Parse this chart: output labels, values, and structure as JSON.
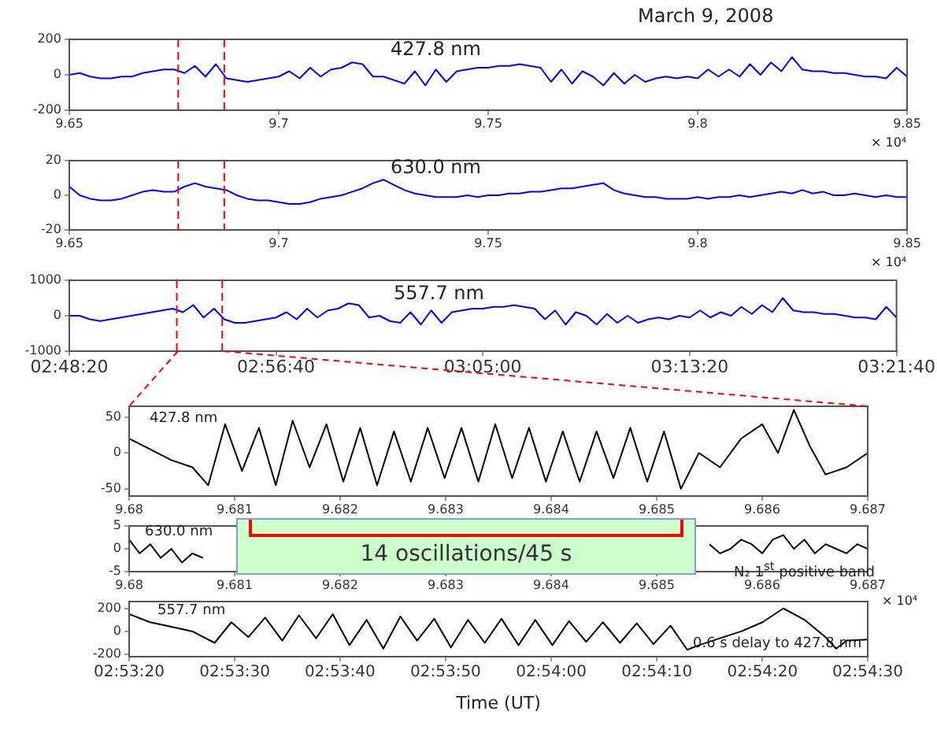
{
  "chart_data": [
    {
      "type": "line",
      "title": "March 9, 2008",
      "annotations": [
        "427.8 nm",
        "× 10⁴"
      ],
      "x": [
        9.65,
        9.6525,
        9.655,
        9.6575,
        9.66,
        9.6625,
        9.665,
        9.6675,
        9.67,
        9.6725,
        9.675,
        9.6775,
        9.68,
        9.6825,
        9.685,
        9.6875,
        9.69,
        9.6925,
        9.695,
        9.6975,
        9.7,
        9.7025,
        9.705,
        9.7075,
        9.71,
        9.7125,
        9.715,
        9.7175,
        9.72,
        9.7225,
        9.725,
        9.7275,
        9.73,
        9.7325,
        9.735,
        9.7375,
        9.74,
        9.7425,
        9.745,
        9.7475,
        9.75,
        9.7525,
        9.755,
        9.7575,
        9.76,
        9.7625,
        9.765,
        9.7675,
        9.77,
        9.7725,
        9.775,
        9.7775,
        9.78,
        9.7825,
        9.785,
        9.7875,
        9.79,
        9.7925,
        9.795,
        9.7975,
        9.8,
        9.8025,
        9.805,
        9.8075,
        9.81,
        9.8125,
        9.815,
        9.8175,
        9.82,
        9.8225,
        9.825,
        9.8275,
        9.83,
        9.8325,
        9.835,
        9.8375,
        9.84,
        9.8425,
        9.845,
        9.8475,
        9.85
      ],
      "series": [
        {
          "color": "#0000ff",
          "values": [
            0,
            10,
            -10,
            -20,
            -20,
            -10,
            -10,
            10,
            20,
            30,
            30,
            10,
            50,
            -10,
            60,
            -20,
            -30,
            -40,
            -30,
            -20,
            -10,
            20,
            -20,
            40,
            -10,
            30,
            40,
            70,
            60,
            -10,
            -10,
            -30,
            -50,
            20,
            -60,
            30,
            -40,
            20,
            30,
            40,
            40,
            50,
            50,
            60,
            50,
            40,
            -40,
            30,
            -50,
            20,
            -10,
            -60,
            10,
            -50,
            0,
            -40,
            -20,
            -10,
            -20,
            -10,
            -20,
            30,
            -10,
            30,
            -10,
            60,
            0,
            70,
            20,
            100,
            30,
            20,
            20,
            10,
            10,
            0,
            -10,
            -10,
            -20,
            40,
            -10
          ]
        }
      ],
      "xlim": [
        9.65,
        9.85
      ],
      "xticks": [
        9.65,
        9.7,
        9.75,
        9.8,
        9.85
      ],
      "ylim": [
        -200,
        200
      ],
      "yticks": [
        -200,
        0,
        200
      ],
      "ref_lines": [
        {
          "axis": "x",
          "value": 9.676,
          "color": "#ff0000",
          "line_style": "dashed"
        },
        {
          "axis": "x",
          "value": 9.687,
          "color": "#ff0000",
          "line_style": "dashed"
        }
      ]
    },
    {
      "type": "line",
      "annotations": [
        "630.0 nm",
        "× 10⁴"
      ],
      "x": [
        9.65,
        9.6525,
        9.655,
        9.6575,
        9.66,
        9.6625,
        9.665,
        9.6675,
        9.67,
        9.6725,
        9.675,
        9.6775,
        9.68,
        9.6825,
        9.685,
        9.6875,
        9.69,
        9.6925,
        9.695,
        9.6975,
        9.7,
        9.7025,
        9.705,
        9.7075,
        9.71,
        9.7125,
        9.715,
        9.7175,
        9.72,
        9.7225,
        9.725,
        9.7275,
        9.73,
        9.7325,
        9.735,
        9.7375,
        9.74,
        9.7425,
        9.745,
        9.7475,
        9.75,
        9.7525,
        9.755,
        9.7575,
        9.76,
        9.7625,
        9.765,
        9.7675,
        9.77,
        9.7725,
        9.775,
        9.7775,
        9.78,
        9.7825,
        9.785,
        9.7875,
        9.79,
        9.7925,
        9.795,
        9.7975,
        9.8,
        9.8025,
        9.805,
        9.8075,
        9.81,
        9.8125,
        9.815,
        9.8175,
        9.82,
        9.8225,
        9.825,
        9.8275,
        9.83,
        9.8325,
        9.835,
        9.8375,
        9.84,
        9.8425,
        9.845,
        9.8475,
        9.85
      ],
      "series": [
        {
          "color": "#0000ff",
          "values": [
            5,
            0,
            -2,
            -3,
            -3,
            -2,
            0,
            2,
            3,
            2,
            2,
            5,
            7,
            5,
            4,
            3,
            0,
            -2,
            -3,
            -3,
            -4,
            -5,
            -5,
            -4,
            -2,
            -1,
            0,
            2,
            4,
            7,
            9,
            6,
            3,
            1,
            0,
            -1,
            -1,
            -1,
            0,
            -1,
            0,
            0,
            1,
            1,
            2,
            2,
            3,
            4,
            4,
            5,
            6,
            7,
            3,
            1,
            0,
            -1,
            -1,
            -2,
            -2,
            -2,
            -1,
            -2,
            -1,
            -1,
            0,
            -1,
            0,
            1,
            2,
            1,
            3,
            1,
            2,
            0,
            0,
            1,
            0,
            -1,
            0,
            -1,
            -1
          ]
        }
      ],
      "xlim": [
        9.65,
        9.85
      ],
      "xticks": [
        9.65,
        9.7,
        9.75,
        9.8,
        9.85
      ],
      "ylim": [
        -20,
        20
      ],
      "yticks": [
        -20,
        0,
        20
      ],
      "ref_lines": [
        {
          "axis": "x",
          "value": 9.676,
          "color": "#ff0000",
          "line_style": "dashed"
        },
        {
          "axis": "x",
          "value": 9.687,
          "color": "#ff0000",
          "line_style": "dashed"
        }
      ]
    },
    {
      "type": "line",
      "annotations": [
        "557.7 nm"
      ],
      "x": [
        2.8056,
        2.8125,
        2.8194,
        2.8264,
        2.8333,
        2.8403,
        2.8472,
        2.8542,
        2.8611,
        2.8681,
        2.875,
        2.8819,
        2.8889,
        2.8958,
        2.9028,
        2.9097,
        2.9167,
        2.9236,
        2.9306,
        2.9375,
        2.9444,
        2.9514,
        2.9583,
        2.9653,
        2.9722,
        2.9792,
        2.9861,
        2.9931,
        3.0,
        3.0069,
        3.0139,
        3.0208,
        3.0278,
        3.0347,
        3.0417,
        3.0486,
        3.0556,
        3.0625,
        3.0694,
        3.0764,
        3.0833,
        3.0903,
        3.0972,
        3.1042,
        3.1111,
        3.1181,
        3.125,
        3.1319,
        3.1389,
        3.1458,
        3.1528,
        3.1597,
        3.1667,
        3.1736,
        3.1806,
        3.1875,
        3.1944,
        3.2014,
        3.2083,
        3.2153,
        3.2222,
        3.2292,
        3.2361,
        3.2431,
        3.25,
        3.2569,
        3.2639,
        3.2708,
        3.2778,
        3.2847,
        3.2917,
        3.2986,
        3.3056,
        3.3125,
        3.3194,
        3.3264,
        3.3333,
        3.3403,
        3.3472,
        3.3542,
        3.3611
      ],
      "series": [
        {
          "color": "#0000ff",
          "values": [
            0,
            0,
            -100,
            -150,
            -100,
            -50,
            0,
            50,
            100,
            150,
            200,
            100,
            300,
            -50,
            200,
            -100,
            -200,
            -200,
            -150,
            -100,
            -50,
            100,
            -100,
            200,
            -50,
            150,
            200,
            350,
            300,
            -50,
            0,
            -150,
            -200,
            100,
            -250,
            150,
            -200,
            100,
            150,
            200,
            200,
            250,
            250,
            300,
            250,
            200,
            -100,
            150,
            -250,
            100,
            0,
            -250,
            50,
            -200,
            0,
            -200,
            -100,
            -50,
            -100,
            0,
            -50,
            150,
            -50,
            100,
            0,
            250,
            50,
            300,
            100,
            500,
            150,
            100,
            100,
            50,
            50,
            0,
            -50,
            -50,
            -100,
            250,
            -50
          ]
        }
      ],
      "xlim": [
        2.8056,
        3.3611
      ],
      "xticks": [
        {
          "value": 2.8056,
          "label": "02:48:20"
        },
        {
          "value": 2.9444,
          "label": "02:56:40"
        },
        {
          "value": 3.0833,
          "label": "03:05:00"
        },
        {
          "value": 3.2222,
          "label": "03:13:20"
        },
        {
          "value": 3.3611,
          "label": "03:21:40"
        }
      ],
      "ylim": [
        -1000,
        1000
      ],
      "yticks": [
        -1000,
        0,
        1000
      ],
      "ref_lines": [
        {
          "axis": "x",
          "value": 2.8778,
          "color": "#ff0000",
          "line_style": "dashed"
        },
        {
          "axis": "x",
          "value": 2.9083,
          "color": "#ff0000",
          "line_style": "dashed"
        }
      ]
    },
    {
      "type": "line",
      "annotations": [
        "427.8 nm",
        "14 oscillations/45 s"
      ],
      "x": [
        9.68,
        9.6802,
        9.6804,
        9.6806,
        9.68075,
        9.68091,
        9.68107,
        9.68123,
        9.68139,
        9.68155,
        9.68171,
        9.68187,
        9.68203,
        9.68219,
        9.68235,
        9.68251,
        9.68267,
        9.68283,
        9.68299,
        9.68315,
        9.68331,
        9.68347,
        9.68363,
        9.68379,
        9.68395,
        9.68411,
        9.68427,
        9.68443,
        9.68459,
        9.68475,
        9.68491,
        9.68507,
        9.68523,
        9.6854,
        9.6856,
        9.6858,
        9.686,
        9.68615,
        9.6863,
        9.68645,
        9.6866,
        9.6868,
        9.687
      ],
      "series": [
        {
          "color": "#000000",
          "values": [
            20,
            5,
            -10,
            -20,
            -45,
            40,
            -25,
            35,
            -45,
            45,
            -20,
            40,
            -40,
            35,
            -45,
            30,
            -40,
            35,
            -35,
            35,
            -40,
            40,
            -35,
            35,
            -40,
            30,
            -40,
            30,
            -35,
            35,
            -40,
            30,
            -50,
            0,
            -20,
            20,
            40,
            0,
            60,
            10,
            -30,
            -20,
            0
          ]
        }
      ],
      "xlim": [
        9.68,
        9.687
      ],
      "xticks": [
        9.68,
        9.681,
        9.682,
        9.683,
        9.684,
        9.685,
        9.686,
        9.687
      ],
      "ylim": [
        -60,
        65
      ],
      "yticks": [
        -50,
        0,
        50
      ]
    },
    {
      "type": "line",
      "annotations": [
        "630.0 nm",
        "N₂ 1$^{st}$ positive band",
        "× 10⁴"
      ],
      "x": [
        9.68,
        9.6801,
        9.6802,
        9.6803,
        9.6804,
        9.6805,
        9.6806,
        9.6807,
        9.683,
        9.6855,
        9.6856,
        9.6857,
        9.6858,
        9.6859,
        9.686,
        9.6861,
        9.6862,
        9.6863,
        9.6864,
        9.6865,
        9.6866,
        9.6867,
        9.6868,
        9.6869,
        9.687
      ],
      "series": [
        {
          "color": "#000000",
          "values": [
            2,
            -1,
            1,
            -2,
            0,
            -3,
            -1,
            -2,
            null,
            1,
            -1,
            0,
            2,
            1,
            -1,
            2,
            3,
            0,
            2,
            -1,
            1,
            0,
            -1,
            1,
            0
          ]
        }
      ],
      "xlim": [
        9.68,
        9.687
      ],
      "xticks": [
        9.68,
        9.681,
        9.682,
        9.683,
        9.684,
        9.685,
        9.686,
        9.687
      ],
      "ylim": [
        -5,
        5
      ],
      "yticks": [
        -5,
        0,
        5
      ]
    },
    {
      "type": "line",
      "xlabel": "Time (UT)",
      "annotations": [
        "557.7 nm",
        "0.6 s delay to 427.8 nm"
      ],
      "x": [
        2.88889,
        2.88944,
        2.89,
        2.89056,
        2.89114,
        2.89158,
        2.89203,
        2.89247,
        2.89292,
        2.89336,
        2.89381,
        2.89425,
        2.89469,
        2.89514,
        2.89558,
        2.89603,
        2.89647,
        2.89692,
        2.89736,
        2.89781,
        2.89825,
        2.89869,
        2.89914,
        2.89958,
        2.90003,
        2.90047,
        2.90092,
        2.90136,
        2.90181,
        2.90225,
        2.90269,
        2.90314,
        2.90358,
        2.90389,
        2.90444,
        2.905,
        2.90556,
        2.90611,
        2.90667,
        2.90722,
        2.9075,
        2.90778,
        2.90833
      ],
      "series": [
        {
          "color": "#000000",
          "values": [
            150,
            80,
            40,
            0,
            -100,
            80,
            -50,
            120,
            -80,
            140,
            -60,
            150,
            -120,
            100,
            -150,
            130,
            -80,
            110,
            -140,
            100,
            -100,
            110,
            -120,
            100,
            -120,
            90,
            -90,
            80,
            -100,
            70,
            -110,
            50,
            -160,
            -120,
            -60,
            0,
            80,
            200,
            100,
            -50,
            -150,
            -80,
            -70
          ]
        }
      ],
      "xlim": [
        2.88889,
        2.90833
      ],
      "xticks": [
        {
          "value": 2.88889,
          "label": "02:53:20"
        },
        {
          "value": 2.89167,
          "label": "02:53:30"
        },
        {
          "value": 2.89444,
          "label": "02:53:40"
        },
        {
          "value": 2.89722,
          "label": "02:53:50"
        },
        {
          "value": 2.9,
          "label": "02:54:00"
        },
        {
          "value": 2.90278,
          "label": "02:54:10"
        },
        {
          "value": 2.90556,
          "label": "02:54:20"
        },
        {
          "value": 2.90833,
          "label": "02:54:30"
        }
      ],
      "ylim": [
        -220,
        260
      ],
      "yticks": [
        -200,
        0,
        200
      ]
    }
  ]
}
